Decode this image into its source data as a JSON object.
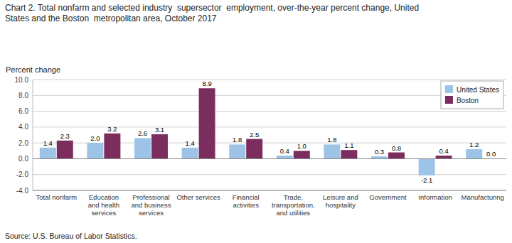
{
  "chart_data": {
    "type": "bar",
    "title": "Chart 2. Total nonfarm and selected industry  supersector  employment, over-the-year percent change, United\nStates and the Boston  metropolitan area, October 2017",
    "y_label": "Percent change",
    "annotations": [
      "Source: U.S. Bureau of Labor Statistics."
    ],
    "categories": [
      "Total nonfarm",
      "Education\nand health\nservices",
      "Professional\nand business\nservices",
      "Other services",
      "Financial\nactivities",
      "Trade,\ntransportation,\nand utilities",
      "Leisure and\nhospitality",
      "Government",
      "Information",
      "Manufacturing"
    ],
    "series": [
      {
        "name": "United States",
        "color": "#9DC3E6",
        "values": [
          1.4,
          2.0,
          2.6,
          1.4,
          1.8,
          0.4,
          1.8,
          0.3,
          -2.1,
          1.2
        ],
        "value_labels": [
          "1.4",
          "2.0",
          "2.6",
          "1.4",
          "1.8",
          "0.4",
          "1.8",
          "0.3",
          "-2.1",
          "1.2"
        ]
      },
      {
        "name": "Boston",
        "color": "#7B2D5E",
        "values": [
          2.3,
          3.2,
          3.1,
          8.9,
          2.5,
          1.0,
          1.1,
          0.8,
          0.4,
          0.0
        ],
        "value_labels": [
          "2.3",
          "3.2",
          "3.1",
          "8.9",
          "2.5",
          "1.0",
          "1.1",
          "0.8",
          "0.4",
          "0.0"
        ]
      }
    ],
    "ylim": [
      -4.0,
      10.0
    ],
    "yticks": [
      {
        "value": -4.0,
        "label": "-4.0"
      },
      {
        "value": -2.0,
        "label": "-2.0"
      },
      {
        "value": 0.0,
        "label": "0.0"
      },
      {
        "value": 2.0,
        "label": "2.0"
      },
      {
        "value": 4.0,
        "label": "4.0"
      },
      {
        "value": 6.0,
        "label": "6.0"
      },
      {
        "value": 8.0,
        "label": "8.0"
      },
      {
        "value": 10.0,
        "label": "10.0"
      }
    ],
    "grid": true,
    "legend": "upper right",
    "data_labels": true
  }
}
